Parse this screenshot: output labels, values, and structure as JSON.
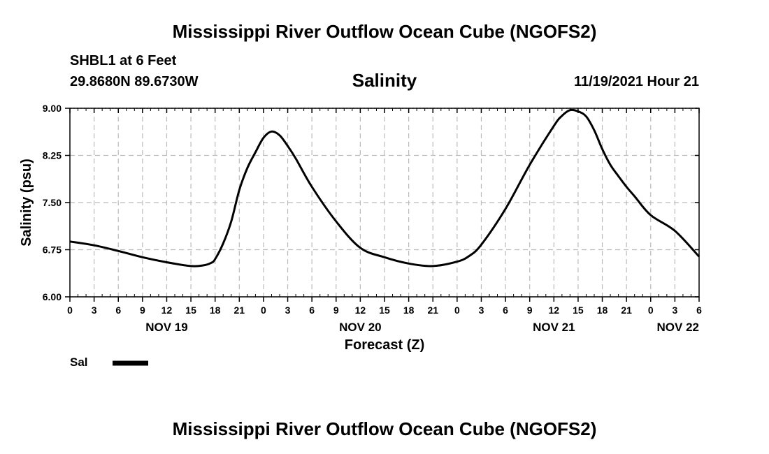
{
  "header": {
    "title": "Mississippi River Outflow Ocean Cube (NGOFS2)",
    "station": "SHBL1 at 6 Feet",
    "coords": "29.8680N  89.6730W",
    "subtitle": "Salinity",
    "date": "11/19/2021 Hour 21"
  },
  "footer": {
    "title": "Mississippi River Outflow Ocean Cube (NGOFS2)"
  },
  "colors": {
    "line": "#000000",
    "grid": "#bbbbbb",
    "axis": "#000000"
  },
  "chart_data": {
    "type": "line",
    "title": "Salinity",
    "xlabel": "Forecast (Z)",
    "ylabel": "Salinity (psu)",
    "xlim": [
      0,
      78
    ],
    "ylim": [
      6.0,
      9.0
    ],
    "yticks": [
      "6.00",
      "6.75",
      "7.50",
      "8.25",
      "9.00"
    ],
    "xtick_labels": [
      "0",
      "3",
      "6",
      "9",
      "12",
      "15",
      "18",
      "21",
      "0",
      "3",
      "6",
      "9",
      "12",
      "15",
      "18",
      "21",
      "0",
      "3",
      "6",
      "9",
      "12",
      "15",
      "18",
      "21",
      "0",
      "3",
      "6"
    ],
    "day_labels": [
      {
        "x": 12,
        "label": "NOV 19"
      },
      {
        "x": 36,
        "label": "NOV 20"
      },
      {
        "x": 60,
        "label": "NOV 21"
      },
      {
        "x": 78,
        "label": "NOV 22"
      }
    ],
    "legend": [
      {
        "name": "Sal"
      }
    ],
    "series": [
      {
        "name": "Sal",
        "x": [
          0,
          3,
          6,
          9,
          12,
          15,
          16.5,
          17.5,
          18,
          19,
          20,
          21,
          22,
          23,
          24,
          25,
          26,
          27,
          28,
          30,
          33,
          36,
          39,
          42,
          45,
          48,
          49.5,
          51,
          54,
          57,
          60,
          61,
          62,
          63,
          64,
          65,
          66,
          67,
          68,
          69,
          70,
          72,
          75,
          78
        ],
        "y": [
          6.88,
          6.82,
          6.73,
          6.63,
          6.55,
          6.49,
          6.5,
          6.54,
          6.6,
          6.85,
          7.2,
          7.7,
          8.05,
          8.3,
          8.53,
          8.63,
          8.57,
          8.4,
          8.2,
          7.75,
          7.2,
          6.78,
          6.63,
          6.53,
          6.49,
          6.56,
          6.65,
          6.83,
          7.4,
          8.1,
          8.72,
          8.88,
          8.97,
          8.95,
          8.87,
          8.65,
          8.35,
          8.1,
          7.92,
          7.75,
          7.6,
          7.3,
          7.05,
          6.64
        ]
      }
    ]
  }
}
